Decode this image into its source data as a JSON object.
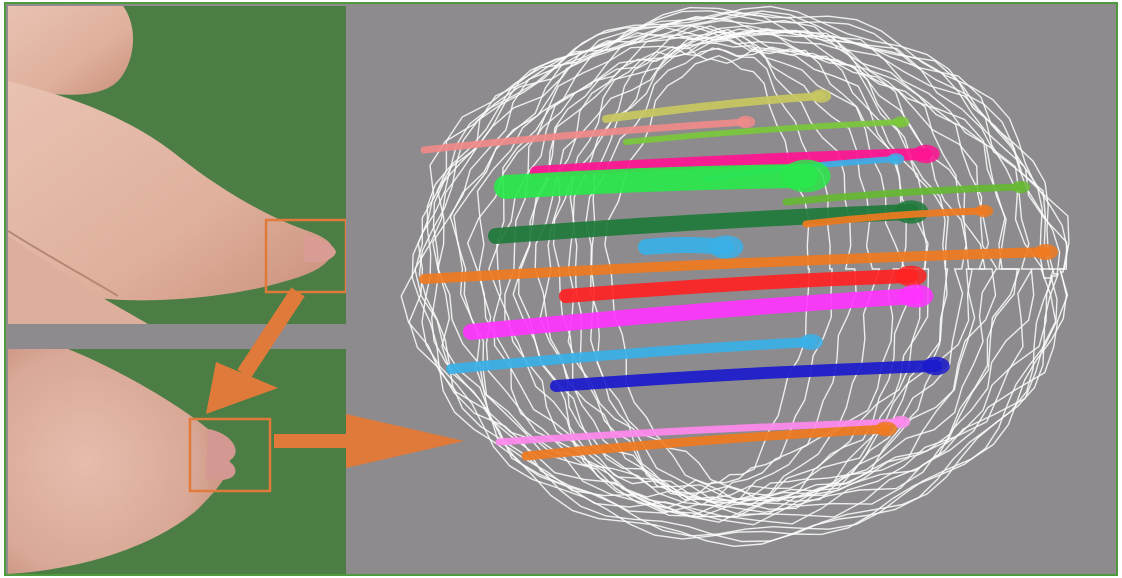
{
  "figure": {
    "description_text": "",
    "panels": [
      {
        "id": "photo-top",
        "kind": "photograph",
        "subject": "side-view-anatomy"
      },
      {
        "id": "photo-bottom",
        "kind": "photograph",
        "subject": "zoomed-close-up"
      },
      {
        "id": "wireframe",
        "kind": "3d-reconstruction",
        "subject": "duct-tree-wireframe"
      }
    ],
    "colors": {
      "frame_border": "#4f9a3c",
      "background_gray": "#8d8b8e",
      "photo_green": "#4b7d45",
      "skin": "#e2b4a3",
      "arrow_orange": "#e07a3a",
      "wireframe_white": "#ffffff"
    },
    "duct_colors": [
      "#c8c860",
      "#f08a8a",
      "#7ac83a",
      "#ff1493",
      "#3ab0e8",
      "#29e84a",
      "#66b832",
      "#1e7a3a",
      "#f07a20",
      "#3ab0e8",
      "#f07a20",
      "#ff2222",
      "#ff33ff",
      "#3ab0e8",
      "#1a1acc",
      "#ff88ee",
      "#f07a20"
    ]
  }
}
